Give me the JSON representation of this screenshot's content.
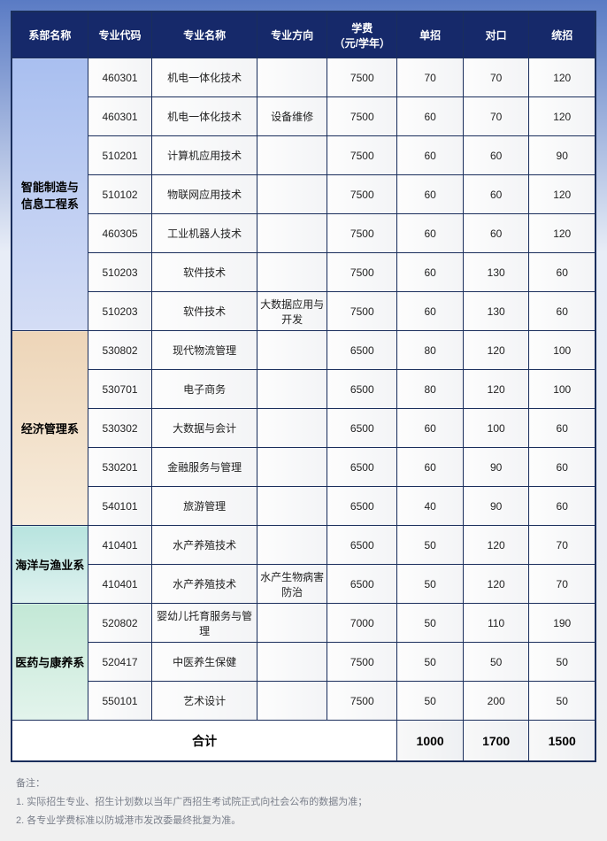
{
  "headers": {
    "dept": "系部名称",
    "code": "专业代码",
    "name": "专业名称",
    "dir": "专业方向",
    "fee": "学费\n（元/学年）",
    "a": "单招",
    "b": "对口",
    "c": "统招"
  },
  "departments": [
    {
      "label": "智能制造与\n信息工程系",
      "class": "dept-blue",
      "rows": [
        {
          "code": "460301",
          "name": "机电一体化技术",
          "dir": "",
          "fee": "7500",
          "a": "70",
          "b": "70",
          "c": "120"
        },
        {
          "code": "460301",
          "name": "机电一体化技术",
          "dir": "设备维修",
          "fee": "7500",
          "a": "60",
          "b": "70",
          "c": "120"
        },
        {
          "code": "510201",
          "name": "计算机应用技术",
          "dir": "",
          "fee": "7500",
          "a": "60",
          "b": "60",
          "c": "90"
        },
        {
          "code": "510102",
          "name": "物联网应用技术",
          "dir": "",
          "fee": "7500",
          "a": "60",
          "b": "60",
          "c": "120"
        },
        {
          "code": "460305",
          "name": "工业机器人技术",
          "dir": "",
          "fee": "7500",
          "a": "60",
          "b": "60",
          "c": "120"
        },
        {
          "code": "510203",
          "name": "软件技术",
          "dir": "",
          "fee": "7500",
          "a": "60",
          "b": "130",
          "c": "60"
        },
        {
          "code": "510203",
          "name": "软件技术",
          "dir": "大数据应用与开发",
          "fee": "7500",
          "a": "60",
          "b": "130",
          "c": "60"
        }
      ]
    },
    {
      "label": "经济管理系",
      "class": "dept-tan",
      "rows": [
        {
          "code": "530802",
          "name": "现代物流管理",
          "dir": "",
          "fee": "6500",
          "a": "80",
          "b": "120",
          "c": "100"
        },
        {
          "code": "530701",
          "name": "电子商务",
          "dir": "",
          "fee": "6500",
          "a": "80",
          "b": "120",
          "c": "100"
        },
        {
          "code": "530302",
          "name": "大数据与会计",
          "dir": "",
          "fee": "6500",
          "a": "60",
          "b": "100",
          "c": "60"
        },
        {
          "code": "530201",
          "name": "金融服务与管理",
          "dir": "",
          "fee": "6500",
          "a": "60",
          "b": "90",
          "c": "60"
        },
        {
          "code": "540101",
          "name": "旅游管理",
          "dir": "",
          "fee": "6500",
          "a": "40",
          "b": "90",
          "c": "60"
        }
      ]
    },
    {
      "label": "海洋与渔业系",
      "class": "dept-teal",
      "rows": [
        {
          "code": "410401",
          "name": "水产养殖技术",
          "dir": "",
          "fee": "6500",
          "a": "50",
          "b": "120",
          "c": "70"
        },
        {
          "code": "410401",
          "name": "水产养殖技术",
          "dir": "水产生物病害防治",
          "fee": "6500",
          "a": "50",
          "b": "120",
          "c": "70"
        }
      ]
    },
    {
      "label": "医药与康养系",
      "class": "dept-green",
      "rows": [
        {
          "code": "520802",
          "name": "婴幼儿托育服务与管理",
          "dir": "",
          "fee": "7000",
          "a": "50",
          "b": "110",
          "c": "190"
        },
        {
          "code": "520417",
          "name": "中医养生保健",
          "dir": "",
          "fee": "7500",
          "a": "50",
          "b": "50",
          "c": "50"
        },
        {
          "code": "550101",
          "name": "艺术设计",
          "dir": "",
          "fee": "7500",
          "a": "50",
          "b": "200",
          "c": "50"
        }
      ]
    }
  ],
  "totals": {
    "label": "合计",
    "a": "1000",
    "b": "1700",
    "c": "1500"
  },
  "notes": {
    "title": "备注：",
    "n1": "1. 实际招生专业、招生计划数以当年广西招生考试院正式向社会公布的数据为准；",
    "n2": "2. 各专业学费标准以防城港市发改委最终批复为准。"
  }
}
